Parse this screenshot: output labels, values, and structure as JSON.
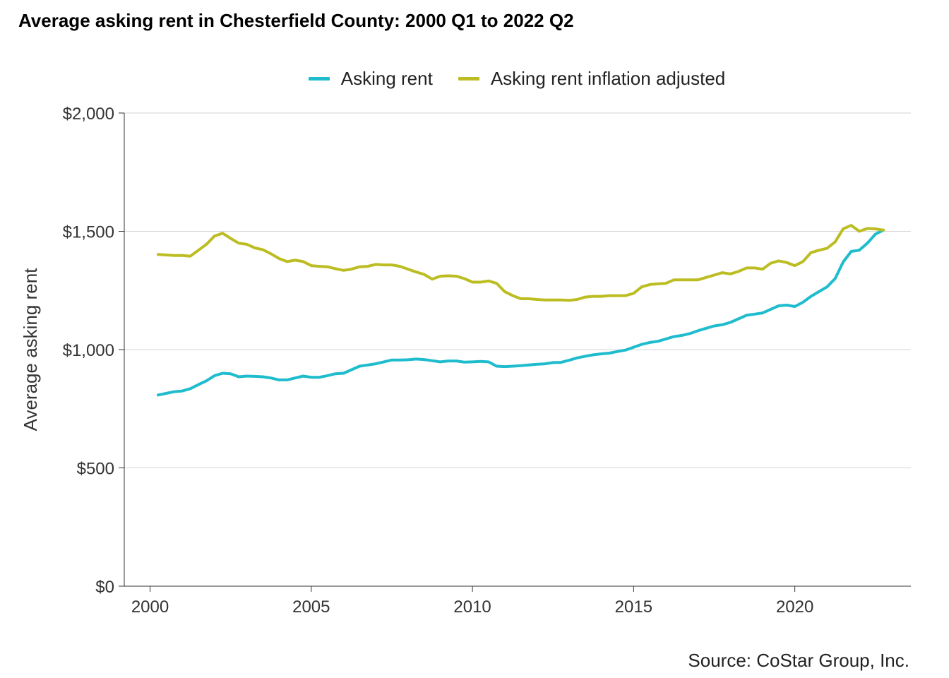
{
  "title": "Average asking rent in Chesterfield County: 2000 Q1 to 2022 Q2",
  "source": "Source: CoStar Group, Inc.",
  "chart_data": {
    "type": "line",
    "title": "Average asking rent in Chesterfield County: 2000 Q1 to 2022 Q2",
    "xlabel": "",
    "ylabel": "Average asking rent",
    "xlim": [
      1999.2,
      2023.6
    ],
    "ylim": [
      0,
      2000
    ],
    "x_ticks": [
      2000,
      2005,
      2010,
      2015,
      2020
    ],
    "x_tick_labels": [
      "2000",
      "2005",
      "2010",
      "2015",
      "2020"
    ],
    "y_ticks": [
      0,
      500,
      1000,
      1500,
      2000
    ],
    "y_tick_labels": [
      "$0",
      "$500",
      "$1,000",
      "$1,500",
      "$2,000"
    ],
    "grid": "horizontal",
    "legend_position": "top",
    "x": [
      2000.25,
      2000.5,
      2000.75,
      2001.0,
      2001.25,
      2001.5,
      2001.75,
      2002.0,
      2002.25,
      2002.5,
      2002.75,
      2003.0,
      2003.25,
      2003.5,
      2003.75,
      2004.0,
      2004.25,
      2004.5,
      2004.75,
      2005.0,
      2005.25,
      2005.5,
      2005.75,
      2006.0,
      2006.25,
      2006.5,
      2006.75,
      2007.0,
      2007.25,
      2007.5,
      2007.75,
      2008.0,
      2008.25,
      2008.5,
      2008.75,
      2009.0,
      2009.25,
      2009.5,
      2009.75,
      2010.0,
      2010.25,
      2010.5,
      2010.75,
      2011.0,
      2011.25,
      2011.5,
      2011.75,
      2012.0,
      2012.25,
      2012.5,
      2012.75,
      2013.0,
      2013.25,
      2013.5,
      2013.75,
      2014.0,
      2014.25,
      2014.5,
      2014.75,
      2015.0,
      2015.25,
      2015.5,
      2015.75,
      2016.0,
      2016.25,
      2016.5,
      2016.75,
      2017.0,
      2017.25,
      2017.5,
      2017.75,
      2018.0,
      2018.25,
      2018.5,
      2018.75,
      2019.0,
      2019.25,
      2019.5,
      2019.75,
      2020.0,
      2020.25,
      2020.5,
      2020.75,
      2021.0,
      2021.25,
      2021.5,
      2021.75,
      2022.0,
      2022.25,
      2022.5,
      2022.75
    ],
    "series": [
      {
        "name": "Asking rent",
        "color": "#1ebccd",
        "values": [
          808,
          815,
          822,
          825,
          835,
          852,
          868,
          890,
          900,
          898,
          885,
          888,
          887,
          885,
          880,
          872,
          872,
          880,
          888,
          883,
          883,
          890,
          898,
          900,
          915,
          930,
          935,
          940,
          948,
          956,
          956,
          957,
          960,
          958,
          953,
          948,
          952,
          952,
          947,
          948,
          950,
          948,
          930,
          928,
          930,
          932,
          935,
          938,
          940,
          945,
          946,
          955,
          965,
          972,
          978,
          982,
          985,
          992,
          998,
          1010,
          1022,
          1030,
          1035,
          1045,
          1055,
          1060,
          1068,
          1080,
          1090,
          1100,
          1105,
          1115,
          1130,
          1145,
          1150,
          1155,
          1170,
          1185,
          1188,
          1182,
          1200,
          1225,
          1245,
          1265,
          1300,
          1370,
          1415,
          1420,
          1450,
          1488,
          1505
        ]
      },
      {
        "name": "Asking rent inflation adjusted",
        "color": "#bcbd22",
        "values": [
          1402,
          1400,
          1398,
          1398,
          1395,
          1420,
          1445,
          1480,
          1492,
          1470,
          1450,
          1445,
          1430,
          1422,
          1405,
          1385,
          1372,
          1378,
          1372,
          1355,
          1352,
          1350,
          1342,
          1335,
          1340,
          1350,
          1352,
          1360,
          1358,
          1358,
          1352,
          1340,
          1328,
          1318,
          1298,
          1310,
          1312,
          1310,
          1300,
          1285,
          1285,
          1290,
          1280,
          1245,
          1228,
          1215,
          1215,
          1212,
          1210,
          1210,
          1210,
          1208,
          1212,
          1222,
          1225,
          1225,
          1228,
          1228,
          1228,
          1238,
          1265,
          1275,
          1278,
          1280,
          1295,
          1295,
          1295,
          1295,
          1305,
          1315,
          1325,
          1320,
          1330,
          1345,
          1345,
          1340,
          1365,
          1375,
          1368,
          1355,
          1372,
          1410,
          1420,
          1428,
          1455,
          1510,
          1525,
          1500,
          1512,
          1510,
          1505
        ]
      }
    ]
  }
}
